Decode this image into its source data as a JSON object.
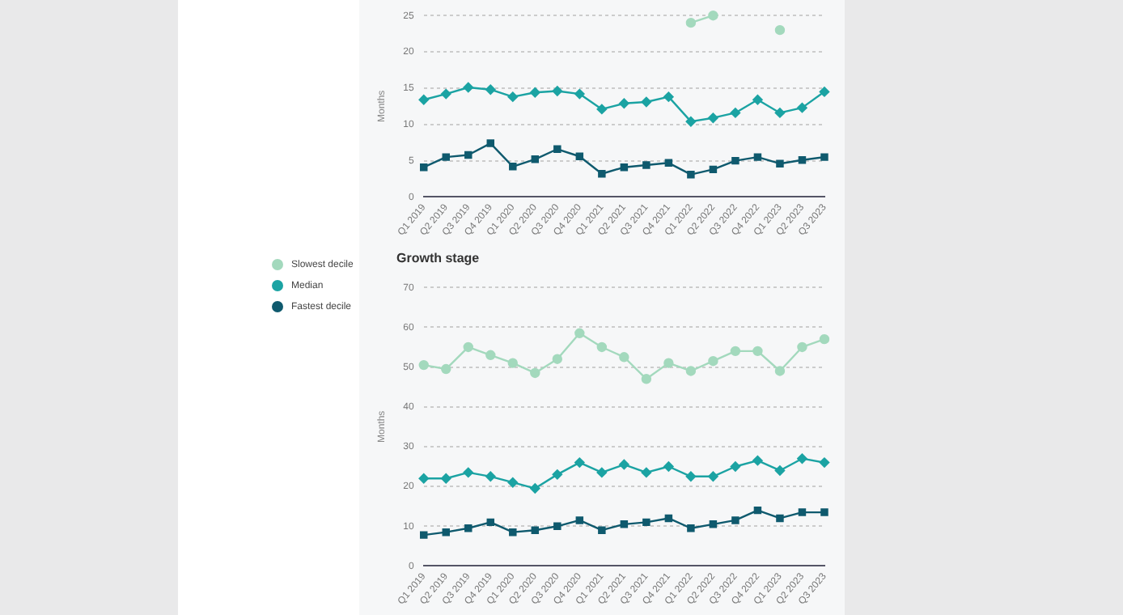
{
  "chart_data": [
    {
      "type": "line",
      "ylabel": "Months",
      "categories": [
        "Q1 2019",
        "Q2 2019",
        "Q3 2019",
        "Q4 2019",
        "Q1 2020",
        "Q2 2020",
        "Q3 2020",
        "Q4 2020",
        "Q1 2021",
        "Q2 2021",
        "Q3 2021",
        "Q4 2021",
        "Q1 2022",
        "Q2 2022",
        "Q3 2022",
        "Q4 2022",
        "Q1 2023",
        "Q2 2023",
        "Q3 2023"
      ],
      "ylim": [
        0,
        25
      ],
      "yticks": [
        0,
        5,
        10,
        15,
        20,
        25
      ],
      "grid": "y",
      "series": [
        {
          "color": "#a3d9bd",
          "marker": "circle",
          "values": [
            null,
            null,
            null,
            null,
            null,
            null,
            null,
            null,
            null,
            null,
            null,
            null,
            24,
            25,
            null,
            null,
            23,
            null,
            null
          ]
        },
        {
          "color": "#1ba3a3",
          "marker": "diamond",
          "values": [
            13.4,
            14.2,
            15.1,
            14.8,
            13.8,
            14.4,
            14.6,
            14.2,
            12.1,
            12.9,
            13.1,
            13.8,
            10.4,
            10.9,
            11.6,
            13.4,
            11.6,
            12.3,
            14.5
          ]
        },
        {
          "color": "#0f5a6e",
          "marker": "square",
          "values": [
            4.1,
            5.5,
            5.8,
            7.4,
            4.2,
            5.2,
            6.6,
            5.6,
            3.2,
            4.1,
            4.4,
            4.7,
            3.1,
            3.8,
            5.0,
            5.5,
            4.6,
            5.1,
            5.5
          ]
        }
      ]
    },
    {
      "type": "line",
      "title": "Growth stage",
      "ylabel": "Months",
      "categories": [
        "Q1 2019",
        "Q2 2019",
        "Q3 2019",
        "Q4 2019",
        "Q1 2020",
        "Q2 2020",
        "Q3 2020",
        "Q4 2020",
        "Q1 2021",
        "Q2 2021",
        "Q3 2021",
        "Q4 2021",
        "Q1 2022",
        "Q2 2022",
        "Q3 2022",
        "Q4 2022",
        "Q1 2023",
        "Q2 2023",
        "Q3 2023"
      ],
      "ylim": [
        0,
        70
      ],
      "yticks": [
        0,
        10,
        20,
        30,
        40,
        50,
        60,
        70
      ],
      "grid": "y",
      "legend": "left",
      "series": [
        {
          "name": "Slowest decile",
          "color": "#a3d9bd",
          "marker": "circle",
          "values": [
            50.5,
            49.5,
            55,
            53,
            51,
            48.5,
            52,
            58.5,
            55,
            52.5,
            47,
            51,
            49,
            51.5,
            54,
            54,
            49,
            55,
            57
          ]
        },
        {
          "name": "Median",
          "color": "#1ba3a3",
          "marker": "diamond",
          "values": [
            22,
            22,
            23.5,
            22.5,
            21,
            19.5,
            23,
            26,
            23.5,
            25.5,
            23.5,
            25,
            22.5,
            22.5,
            25,
            26.5,
            24,
            27,
            26
          ]
        },
        {
          "name": "Fastest decile",
          "color": "#0f5a6e",
          "marker": "square",
          "values": [
            7.8,
            8.5,
            9.5,
            11,
            8.5,
            9,
            10,
            11.5,
            9,
            10.5,
            11,
            12,
            9.5,
            10.5,
            11.5,
            14,
            12,
            13.5,
            13.5
          ]
        }
      ]
    }
  ]
}
